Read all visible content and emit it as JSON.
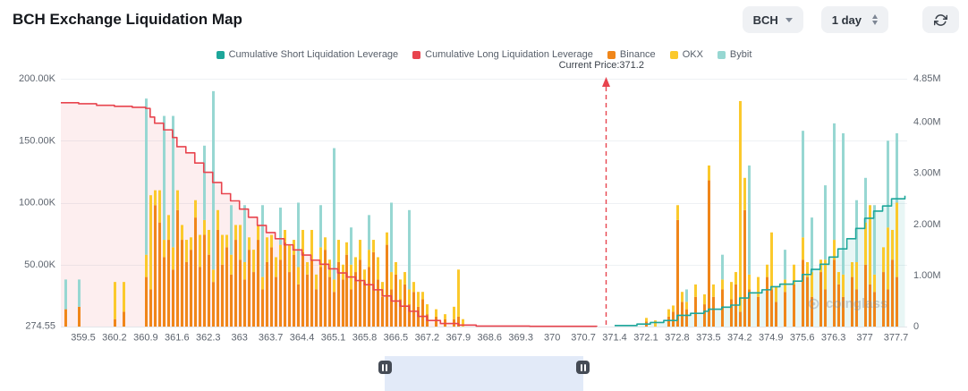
{
  "header": {
    "title": "BCH Exchange Liquidation Map",
    "symbol_select": {
      "value": "BCH"
    },
    "period_select": {
      "value": "1 day"
    }
  },
  "legend": {
    "items": [
      {
        "label": "Cumulative Short Liquidation Leverage",
        "color": "#1DA69A"
      },
      {
        "label": "Cumulative Long Liquidation Leverage",
        "color": "#E8444E"
      },
      {
        "label": "Binance",
        "color": "#F0861A"
      },
      {
        "label": "OKX",
        "color": "#FBC92C"
      },
      {
        "label": "Bybit",
        "color": "#97D7D2"
      }
    ]
  },
  "chart_data": {
    "type": "bar",
    "title": "BCH Exchange Liquidation Map",
    "x_axis": {
      "min": 359.0,
      "max": 377.95,
      "tick_labels": [
        "359.5",
        "360.2",
        "360.9",
        "361.6",
        "362.3",
        "363",
        "363.7",
        "364.4",
        "365.1",
        "365.8",
        "366.5",
        "367.2",
        "367.9",
        "368.6",
        "369.3",
        "370",
        "370.7",
        "371.4",
        "372.1",
        "372.8",
        "373.5",
        "374.2",
        "374.9",
        "375.6",
        "376.3",
        "377",
        "377.7"
      ]
    },
    "left_axis": {
      "max": 200000,
      "tick_labels": [
        "200.00K",
        "150.00K",
        "100.00K",
        "50.00K",
        "274.55"
      ],
      "tick_values": [
        200000,
        150000,
        100000,
        50000,
        274.55
      ]
    },
    "right_axis": {
      "max": 4850000,
      "tick_labels": [
        "4.85M",
        "4.00M",
        "3.00M",
        "2.00M",
        "1.00M",
        "0"
      ],
      "tick_values": [
        4850000,
        4000000,
        3000000,
        2000000,
        1000000,
        0
      ]
    },
    "current_price": {
      "label": "Current Price:371.2",
      "value": 371.2,
      "color": "#E8444E"
    },
    "series_colors": {
      "binance": "#F0861A",
      "okx": "#FBC92C",
      "bybit": "#97D7D2"
    },
    "bar_unit": "thousands-left-axis",
    "bars": [
      [
        359.1,
        14,
        0,
        24
      ],
      [
        359.4,
        16,
        0,
        22
      ],
      [
        360.2,
        6,
        30,
        0
      ],
      [
        360.4,
        12,
        24,
        0
      ],
      [
        360.9,
        40,
        18,
        126
      ],
      [
        361.0,
        30,
        76,
        0
      ],
      [
        361.1,
        98,
        12,
        0
      ],
      [
        361.2,
        84,
        26,
        0
      ],
      [
        361.3,
        56,
        14,
        100
      ],
      [
        361.4,
        70,
        20,
        0
      ],
      [
        361.5,
        46,
        18,
        106
      ],
      [
        361.6,
        94,
        16,
        0
      ],
      [
        361.7,
        70,
        12,
        0
      ],
      [
        361.8,
        52,
        18,
        0
      ],
      [
        361.9,
        62,
        10,
        0
      ],
      [
        362.0,
        88,
        14,
        0
      ],
      [
        362.1,
        48,
        26,
        0
      ],
      [
        362.2,
        74,
        12,
        60
      ],
      [
        362.3,
        58,
        20,
        0
      ],
      [
        362.4,
        36,
        10,
        144
      ],
      [
        362.5,
        78,
        16,
        0
      ],
      [
        362.6,
        50,
        24,
        0
      ],
      [
        362.7,
        64,
        10,
        0
      ],
      [
        362.8,
        42,
        16,
        40
      ],
      [
        362.9,
        70,
        12,
        0
      ],
      [
        363.0,
        54,
        28,
        0
      ],
      [
        363.1,
        38,
        14,
        46
      ],
      [
        363.2,
        62,
        10,
        0
      ],
      [
        363.3,
        44,
        18,
        0
      ],
      [
        363.4,
        70,
        12,
        0
      ],
      [
        363.5,
        30,
        10,
        58
      ],
      [
        363.6,
        52,
        20,
        0
      ],
      [
        363.7,
        64,
        10,
        0
      ],
      [
        363.8,
        40,
        16,
        0
      ],
      [
        363.9,
        54,
        12,
        30
      ],
      [
        364.0,
        68,
        10,
        0
      ],
      [
        364.1,
        44,
        22,
        0
      ],
      [
        364.2,
        58,
        12,
        0
      ],
      [
        364.3,
        34,
        14,
        52
      ],
      [
        364.4,
        60,
        18,
        0
      ],
      [
        364.5,
        42,
        10,
        0
      ],
      [
        364.6,
        54,
        24,
        0
      ],
      [
        364.7,
        30,
        12,
        0
      ],
      [
        364.8,
        48,
        16,
        34
      ],
      [
        364.9,
        62,
        10,
        0
      ],
      [
        365.0,
        40,
        14,
        0
      ],
      [
        365.1,
        28,
        10,
        106
      ],
      [
        365.2,
        52,
        18,
        0
      ],
      [
        365.3,
        38,
        12,
        0
      ],
      [
        365.4,
        58,
        10,
        0
      ],
      [
        365.5,
        30,
        20,
        30
      ],
      [
        365.6,
        44,
        12,
        0
      ],
      [
        365.7,
        54,
        16,
        0
      ],
      [
        365.8,
        36,
        10,
        0
      ],
      [
        365.9,
        48,
        14,
        28
      ],
      [
        366.0,
        60,
        10,
        0
      ],
      [
        366.1,
        38,
        18,
        0
      ],
      [
        366.2,
        24,
        12,
        0
      ],
      [
        366.3,
        66,
        10,
        0
      ],
      [
        366.4,
        30,
        14,
        56
      ],
      [
        366.5,
        42,
        10,
        0
      ],
      [
        366.6,
        22,
        16,
        0
      ],
      [
        366.7,
        34,
        10,
        0
      ],
      [
        366.8,
        18,
        12,
        64
      ],
      [
        366.9,
        28,
        8,
        0
      ],
      [
        367.0,
        16,
        12,
        0
      ],
      [
        367.1,
        22,
        6,
        0
      ],
      [
        367.2,
        10,
        8,
        0
      ],
      [
        367.4,
        8,
        6,
        0
      ],
      [
        367.6,
        6,
        4,
        0
      ],
      [
        367.8,
        6,
        10,
        0
      ],
      [
        367.9,
        8,
        38,
        0
      ],
      [
        368.0,
        0,
        6,
        0
      ],
      [
        372.1,
        4,
        3,
        0
      ],
      [
        372.3,
        0,
        5,
        0
      ],
      [
        372.6,
        8,
        6,
        0
      ],
      [
        372.7,
        12,
        5,
        0
      ],
      [
        372.8,
        86,
        12,
        0
      ],
      [
        372.9,
        20,
        8,
        0
      ],
      [
        373.0,
        14,
        6,
        10
      ],
      [
        373.2,
        24,
        10,
        0
      ],
      [
        373.4,
        18,
        8,
        0
      ],
      [
        373.5,
        118,
        12,
        0
      ],
      [
        373.6,
        24,
        10,
        0
      ],
      [
        373.8,
        30,
        8,
        20
      ],
      [
        374.0,
        22,
        14,
        0
      ],
      [
        374.1,
        34,
        10,
        0
      ],
      [
        374.2,
        12,
        170,
        0
      ],
      [
        374.3,
        94,
        26,
        0
      ],
      [
        374.4,
        30,
        12,
        88
      ],
      [
        374.6,
        24,
        16,
        0
      ],
      [
        374.8,
        40,
        10,
        0
      ],
      [
        374.9,
        30,
        46,
        0
      ],
      [
        375.0,
        20,
        12,
        0
      ],
      [
        375.2,
        28,
        10,
        24
      ],
      [
        375.4,
        34,
        16,
        0
      ],
      [
        375.6,
        54,
        18,
        86
      ],
      [
        375.7,
        40,
        12,
        0
      ],
      [
        375.8,
        24,
        20,
        44
      ],
      [
        376.0,
        44,
        10,
        0
      ],
      [
        376.1,
        30,
        24,
        60
      ],
      [
        376.3,
        54,
        16,
        94
      ],
      [
        376.4,
        34,
        10,
        0
      ],
      [
        376.5,
        24,
        18,
        114
      ],
      [
        376.7,
        40,
        12,
        0
      ],
      [
        376.8,
        30,
        22,
        50
      ],
      [
        377.0,
        50,
        34,
        36
      ],
      [
        377.1,
        34,
        64,
        0
      ],
      [
        377.2,
        28,
        14,
        56
      ],
      [
        377.4,
        44,
        20,
        0
      ],
      [
        377.5,
        30,
        50,
        70
      ],
      [
        377.6,
        54,
        24,
        0
      ],
      [
        377.7,
        40,
        60,
        56
      ]
    ],
    "lines": [
      {
        "name": "Cumulative Long Liquidation Leverage",
        "axis": "right",
        "color": "#E8444E",
        "fill": "rgba(232,68,78,0.09)",
        "points": [
          [
            359.0,
            4380000
          ],
          [
            359.4,
            4360000
          ],
          [
            359.8,
            4330000
          ],
          [
            360.2,
            4310000
          ],
          [
            360.6,
            4290000
          ],
          [
            360.9,
            4270000
          ],
          [
            361.0,
            4100000
          ],
          [
            361.1,
            3980000
          ],
          [
            361.3,
            3850000
          ],
          [
            361.5,
            3700000
          ],
          [
            361.6,
            3520000
          ],
          [
            361.8,
            3400000
          ],
          [
            362.0,
            3200000
          ],
          [
            362.2,
            3020000
          ],
          [
            362.4,
            2820000
          ],
          [
            362.6,
            2600000
          ],
          [
            362.8,
            2460000
          ],
          [
            363.0,
            2300000
          ],
          [
            363.2,
            2140000
          ],
          [
            363.4,
            1980000
          ],
          [
            363.6,
            1840000
          ],
          [
            363.8,
            1720000
          ],
          [
            364.0,
            1600000
          ],
          [
            364.2,
            1500000
          ],
          [
            364.4,
            1400000
          ],
          [
            364.6,
            1300000
          ],
          [
            364.8,
            1220000
          ],
          [
            365.0,
            1130000
          ],
          [
            365.2,
            1050000
          ],
          [
            365.4,
            970000
          ],
          [
            365.6,
            900000
          ],
          [
            365.8,
            820000
          ],
          [
            366.0,
            720000
          ],
          [
            366.2,
            600000
          ],
          [
            366.4,
            500000
          ],
          [
            366.6,
            400000
          ],
          [
            366.8,
            300000
          ],
          [
            367.0,
            200000
          ],
          [
            367.2,
            120000
          ],
          [
            367.5,
            60000
          ],
          [
            367.9,
            30000
          ],
          [
            368.3,
            10000
          ],
          [
            369.5,
            5000
          ],
          [
            371.0,
            0
          ]
        ]
      },
      {
        "name": "Cumulative Short Liquidation Leverage",
        "axis": "right",
        "color": "#1DA69A",
        "fill": "rgba(29,166,154,0.10)",
        "points": [
          [
            371.4,
            20000
          ],
          [
            371.9,
            50000
          ],
          [
            372.2,
            80000
          ],
          [
            372.5,
            120000
          ],
          [
            372.8,
            220000
          ],
          [
            373.1,
            260000
          ],
          [
            373.4,
            300000
          ],
          [
            373.5,
            340000
          ],
          [
            373.8,
            380000
          ],
          [
            374.0,
            420000
          ],
          [
            374.2,
            560000
          ],
          [
            374.4,
            660000
          ],
          [
            374.7,
            720000
          ],
          [
            374.9,
            780000
          ],
          [
            375.1,
            830000
          ],
          [
            375.4,
            890000
          ],
          [
            375.6,
            1020000
          ],
          [
            375.8,
            1120000
          ],
          [
            376.0,
            1220000
          ],
          [
            376.2,
            1360000
          ],
          [
            376.4,
            1520000
          ],
          [
            376.6,
            1720000
          ],
          [
            376.8,
            1920000
          ],
          [
            377.0,
            2120000
          ],
          [
            377.2,
            2260000
          ],
          [
            377.4,
            2360000
          ],
          [
            377.6,
            2500000
          ],
          [
            377.9,
            2560000
          ]
        ]
      }
    ]
  },
  "watermark": {
    "text": "coinglass"
  },
  "datazoom": {
    "window_start_pct": 39.7,
    "window_end_pct": 60.3
  }
}
